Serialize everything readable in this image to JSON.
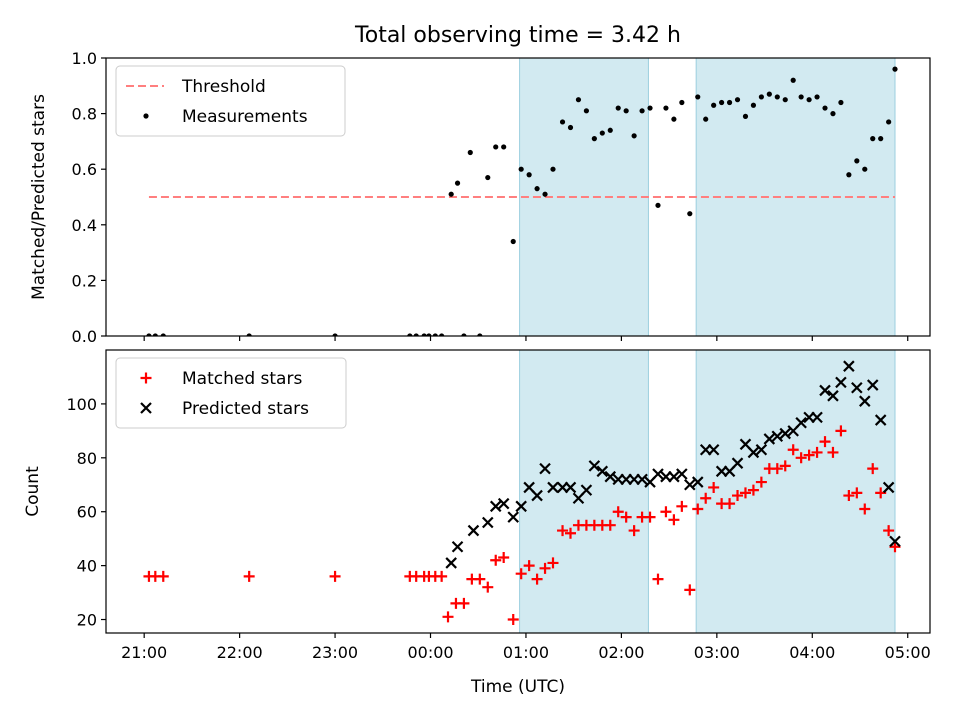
{
  "figure_title": "Total observing time = 3.42 h",
  "x_label": "Time (UTC)",
  "chart_data": [
    {
      "type": "scatter",
      "ylabel": "Matched/Predicted stars",
      "xlim": [
        "20:36",
        "05:14"
      ],
      "ylim": [
        0,
        1.0
      ],
      "y_ticks": [
        0.0,
        0.2,
        0.4,
        0.6,
        0.8,
        1.0
      ],
      "y_tick_labels": [
        "0.0",
        "0.2",
        "0.4",
        "0.6",
        "0.8",
        "1.0"
      ],
      "x_ticks": [
        "21:00",
        "22:00",
        "23:00",
        "00:00",
        "01:00",
        "02:00",
        "03:00",
        "04:00",
        "05:00"
      ],
      "show_x_tick_labels": false,
      "shaded_intervals": [
        [
          "00:56",
          "02:17"
        ],
        [
          "02:47",
          "04:52"
        ]
      ],
      "shade_color": "#add8e6",
      "legend_position": "upper-left",
      "threshold": {
        "name": "Threshold",
        "value": 0.5,
        "x_range": [
          "21:03",
          "04:52"
        ],
        "color": "#ff7f7f",
        "style": "dashed"
      },
      "series": [
        {
          "name": "Measurements",
          "marker": "dot",
          "color": "#000000",
          "points": [
            [
              "21:03",
              0.0
            ],
            [
              "21:07",
              0.0
            ],
            [
              "21:12",
              0.0
            ],
            [
              "22:06",
              0.0
            ],
            [
              "23:00",
              0.0
            ],
            [
              "23:47",
              0.0
            ],
            [
              "23:51",
              0.0
            ],
            [
              "23:56",
              0.0
            ],
            [
              "23:59",
              0.0
            ],
            [
              "00:03",
              0.0
            ],
            [
              "00:07",
              0.0
            ],
            [
              "00:13",
              0.51
            ],
            [
              "00:17",
              0.55
            ],
            [
              "00:21",
              0.0
            ],
            [
              "00:25",
              0.66
            ],
            [
              "00:31",
              0.0
            ],
            [
              "00:36",
              0.57
            ],
            [
              "00:41",
              0.68
            ],
            [
              "00:46",
              0.68
            ],
            [
              "00:52",
              0.34
            ],
            [
              "00:57",
              0.6
            ],
            [
              "01:02",
              0.58
            ],
            [
              "01:07",
              0.53
            ],
            [
              "01:12",
              0.51
            ],
            [
              "01:17",
              0.6
            ],
            [
              "01:23",
              0.77
            ],
            [
              "01:28",
              0.75
            ],
            [
              "01:33",
              0.85
            ],
            [
              "01:38",
              0.81
            ],
            [
              "01:43",
              0.71
            ],
            [
              "01:48",
              0.73
            ],
            [
              "01:53",
              0.74
            ],
            [
              "01:58",
              0.82
            ],
            [
              "02:03",
              0.81
            ],
            [
              "02:08",
              0.72
            ],
            [
              "02:13",
              0.81
            ],
            [
              "02:18",
              0.82
            ],
            [
              "02:23",
              0.47
            ],
            [
              "02:28",
              0.82
            ],
            [
              "02:33",
              0.78
            ],
            [
              "02:38",
              0.84
            ],
            [
              "02:43",
              0.44
            ],
            [
              "02:48",
              0.86
            ],
            [
              "02:53",
              0.78
            ],
            [
              "02:58",
              0.83
            ],
            [
              "03:03",
              0.84
            ],
            [
              "03:08",
              0.84
            ],
            [
              "03:13",
              0.85
            ],
            [
              "03:18",
              0.79
            ],
            [
              "03:23",
              0.83
            ],
            [
              "03:28",
              0.86
            ],
            [
              "03:33",
              0.87
            ],
            [
              "03:38",
              0.86
            ],
            [
              "03:43",
              0.85
            ],
            [
              "03:48",
              0.92
            ],
            [
              "03:53",
              0.86
            ],
            [
              "03:58",
              0.85
            ],
            [
              "04:03",
              0.86
            ],
            [
              "04:08",
              0.82
            ],
            [
              "04:13",
              0.8
            ],
            [
              "04:18",
              0.84
            ],
            [
              "04:23",
              0.58
            ],
            [
              "04:28",
              0.63
            ],
            [
              "04:33",
              0.6
            ],
            [
              "04:38",
              0.71
            ],
            [
              "04:43",
              0.71
            ],
            [
              "04:48",
              0.77
            ],
            [
              "04:52",
              0.96
            ]
          ]
        }
      ]
    },
    {
      "type": "scatter",
      "ylabel": "Count",
      "xlabel": "Time (UTC)",
      "xlim": [
        "20:36",
        "05:14"
      ],
      "ylim": [
        15,
        120
      ],
      "y_ticks": [
        20,
        40,
        60,
        80,
        100
      ],
      "y_tick_labels": [
        "20",
        "40",
        "60",
        "80",
        "100"
      ],
      "x_ticks": [
        "21:00",
        "22:00",
        "23:00",
        "00:00",
        "01:00",
        "02:00",
        "03:00",
        "04:00",
        "05:00"
      ],
      "x_tick_labels": [
        "21:00",
        "22:00",
        "23:00",
        "00:00",
        "01:00",
        "02:00",
        "03:00",
        "04:00",
        "05:00"
      ],
      "shaded_intervals": [
        [
          "00:56",
          "02:17"
        ],
        [
          "02:47",
          "04:52"
        ]
      ],
      "shade_color": "#add8e6",
      "legend_position": "upper-left",
      "series": [
        {
          "name": "Matched stars",
          "marker": "plus",
          "color": "#ff0000",
          "points": [
            [
              "21:03",
              36
            ],
            [
              "21:07",
              36
            ],
            [
              "21:12",
              36
            ],
            [
              "22:06",
              36
            ],
            [
              "23:00",
              36
            ],
            [
              "23:47",
              36
            ],
            [
              "23:51",
              36
            ],
            [
              "23:56",
              36
            ],
            [
              "23:59",
              36
            ],
            [
              "00:03",
              36
            ],
            [
              "00:07",
              36
            ],
            [
              "00:11",
              21
            ],
            [
              "00:16",
              26
            ],
            [
              "00:21",
              26
            ],
            [
              "00:26",
              35
            ],
            [
              "00:31",
              35
            ],
            [
              "00:36",
              32
            ],
            [
              "00:41",
              42
            ],
            [
              "00:46",
              43
            ],
            [
              "00:52",
              20
            ],
            [
              "00:57",
              37
            ],
            [
              "01:02",
              40
            ],
            [
              "01:07",
              35
            ],
            [
              "01:12",
              39
            ],
            [
              "01:17",
              41
            ],
            [
              "01:23",
              53
            ],
            [
              "01:28",
              52
            ],
            [
              "01:33",
              55
            ],
            [
              "01:38",
              55
            ],
            [
              "01:43",
              55
            ],
            [
              "01:48",
              55
            ],
            [
              "01:53",
              55
            ],
            [
              "01:58",
              60
            ],
            [
              "02:03",
              58
            ],
            [
              "02:08",
              53
            ],
            [
              "02:13",
              58
            ],
            [
              "02:18",
              58
            ],
            [
              "02:23",
              35
            ],
            [
              "02:28",
              60
            ],
            [
              "02:33",
              57
            ],
            [
              "02:38",
              62
            ],
            [
              "02:43",
              31
            ],
            [
              "02:48",
              61
            ],
            [
              "02:53",
              65
            ],
            [
              "02:58",
              69
            ],
            [
              "03:03",
              63
            ],
            [
              "03:08",
              63
            ],
            [
              "03:13",
              66
            ],
            [
              "03:18",
              67
            ],
            [
              "03:23",
              68
            ],
            [
              "03:28",
              71
            ],
            [
              "03:33",
              76
            ],
            [
              "03:38",
              76
            ],
            [
              "03:43",
              77
            ],
            [
              "03:48",
              83
            ],
            [
              "03:53",
              80
            ],
            [
              "03:58",
              81
            ],
            [
              "04:03",
              82
            ],
            [
              "04:08",
              86
            ],
            [
              "04:13",
              82
            ],
            [
              "04:18",
              90
            ],
            [
              "04:23",
              66
            ],
            [
              "04:28",
              67
            ],
            [
              "04:33",
              61
            ],
            [
              "04:38",
              76
            ],
            [
              "04:43",
              67
            ],
            [
              "04:48",
              53
            ],
            [
              "04:52",
              47
            ]
          ]
        },
        {
          "name": "Predicted stars",
          "marker": "x",
          "color": "#000000",
          "points": [
            [
              "00:13",
              41
            ],
            [
              "00:17",
              47
            ],
            [
              "00:27",
              53
            ],
            [
              "00:36",
              56
            ],
            [
              "00:41",
              62
            ],
            [
              "00:46",
              63
            ],
            [
              "00:52",
              58
            ],
            [
              "00:57",
              62
            ],
            [
              "01:02",
              69
            ],
            [
              "01:07",
              66
            ],
            [
              "01:12",
              76
            ],
            [
              "01:17",
              69
            ],
            [
              "01:23",
              69
            ],
            [
              "01:28",
              69
            ],
            [
              "01:33",
              65
            ],
            [
              "01:38",
              68
            ],
            [
              "01:43",
              77
            ],
            [
              "01:48",
              75
            ],
            [
              "01:53",
              73
            ],
            [
              "01:58",
              72
            ],
            [
              "02:03",
              72
            ],
            [
              "02:08",
              72
            ],
            [
              "02:13",
              72
            ],
            [
              "02:18",
              71
            ],
            [
              "02:23",
              74
            ],
            [
              "02:28",
              73
            ],
            [
              "02:33",
              73
            ],
            [
              "02:38",
              74
            ],
            [
              "02:43",
              70
            ],
            [
              "02:48",
              71
            ],
            [
              "02:53",
              83
            ],
            [
              "02:58",
              83
            ],
            [
              "03:03",
              75
            ],
            [
              "03:08",
              75
            ],
            [
              "03:13",
              78
            ],
            [
              "03:18",
              85
            ],
            [
              "03:23",
              82
            ],
            [
              "03:28",
              83
            ],
            [
              "03:33",
              87
            ],
            [
              "03:38",
              88
            ],
            [
              "03:43",
              89
            ],
            [
              "03:48",
              90
            ],
            [
              "03:53",
              93
            ],
            [
              "03:58",
              95
            ],
            [
              "04:03",
              95
            ],
            [
              "04:08",
              105
            ],
            [
              "04:13",
              103
            ],
            [
              "04:18",
              108
            ],
            [
              "04:23",
              114
            ],
            [
              "04:28",
              106
            ],
            [
              "04:33",
              101
            ],
            [
              "04:38",
              107
            ],
            [
              "04:43",
              94
            ],
            [
              "04:48",
              69
            ],
            [
              "04:52",
              49
            ]
          ]
        }
      ]
    }
  ]
}
